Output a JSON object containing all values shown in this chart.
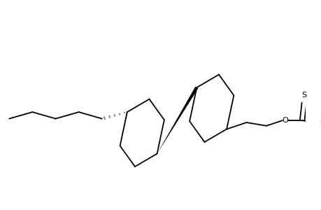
{
  "bg_color": "#ffffff",
  "line_color": "#000000",
  "line_width": 1.3,
  "figsize": [
    4.6,
    3.0
  ],
  "dpi": 100
}
